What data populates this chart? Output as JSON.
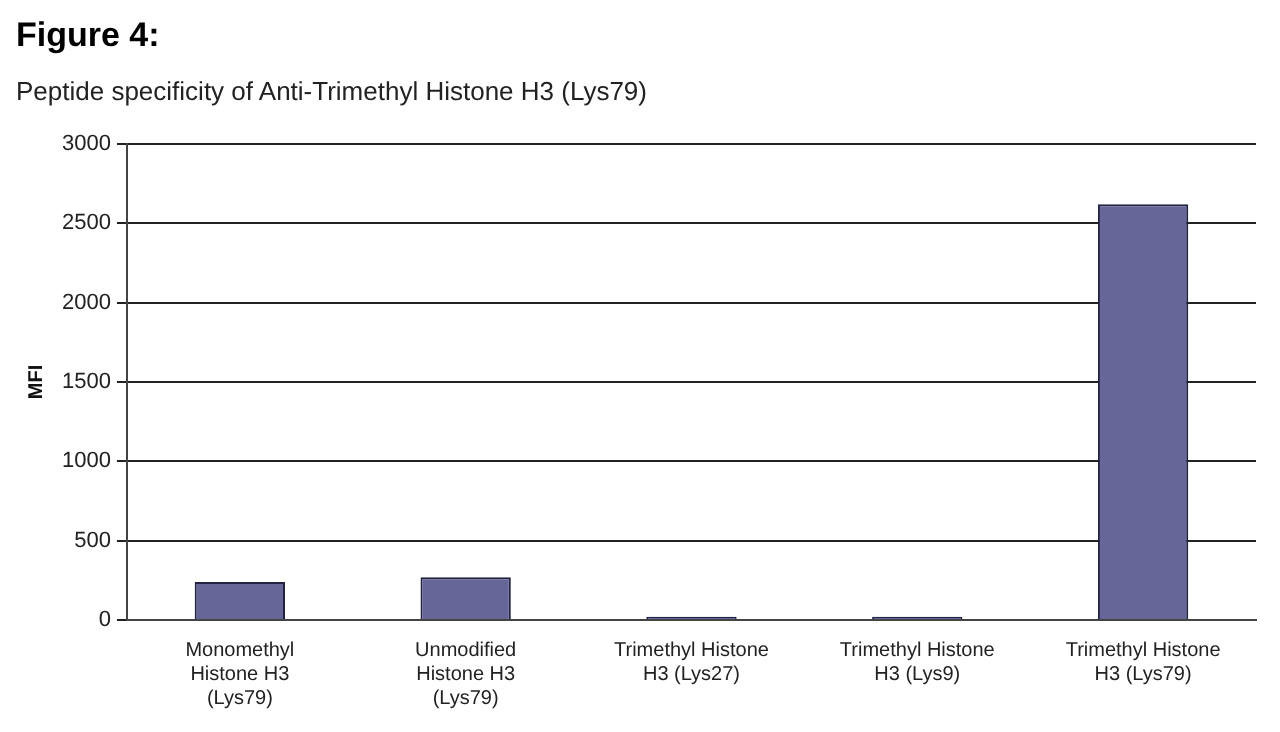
{
  "chart_data": {
    "type": "bar",
    "title": "Figure 4:",
    "subtitle": "Peptide specificity of Anti-Trimethyl Histone H3 (Lys79)",
    "ylabel": "MFI",
    "categories": [
      "Monomethyl Histone H3 (Lys79)",
      "Unmodified Histone H3 (Lys79)",
      "Trimethyl Histone H3 (Lys27)",
      "Trimethyl Histone H3 (Lys9)",
      "Trimethyl Histone H3 (Lys79)"
    ],
    "values": [
      240,
      270,
      20,
      20,
      2620
    ],
    "color": "#666699",
    "ylim": [
      0,
      3000
    ],
    "yticks": [
      0,
      500,
      1000,
      1500,
      2000,
      2500,
      3000
    ],
    "grid": "y",
    "legend": false
  }
}
